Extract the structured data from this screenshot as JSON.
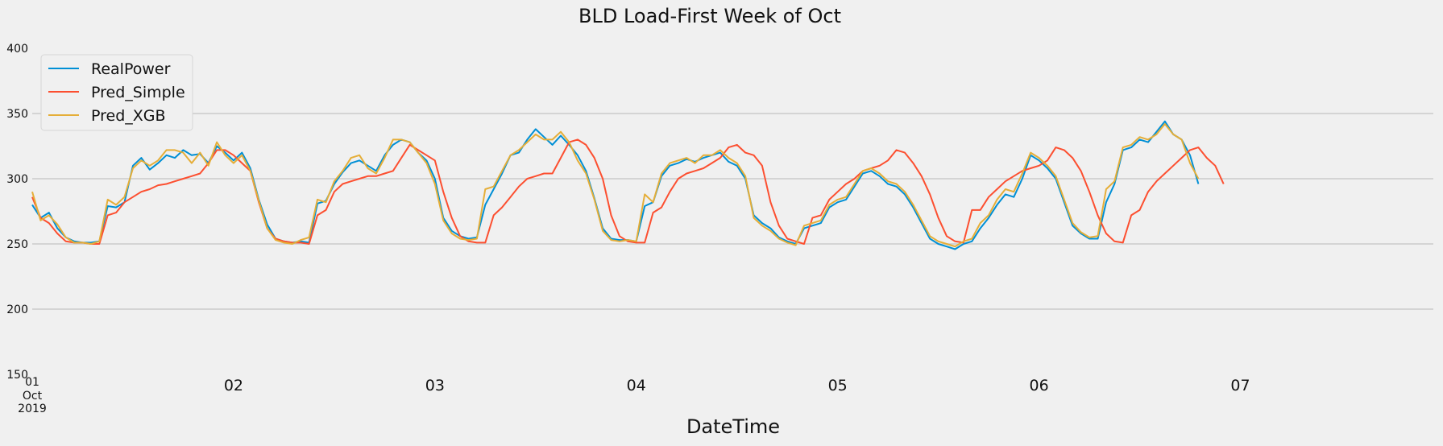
{
  "chart_data": {
    "type": "line",
    "title": "BLD Load-First Week of Oct",
    "xlabel": "DateTime",
    "ylabel": "",
    "ylim": [
      150,
      400
    ],
    "yticks": [
      150,
      200,
      250,
      300,
      350,
      400
    ],
    "xlim": [
      "2019-10-01 00:00",
      "2019-10-07 23:00"
    ],
    "xticks": [
      {
        "value": "2019-10-01",
        "label": "01",
        "sublabel": "Oct",
        "sublabel2": "2019"
      },
      {
        "value": "2019-10-02",
        "label": "02"
      },
      {
        "value": "2019-10-03",
        "label": "03"
      },
      {
        "value": "2019-10-04",
        "label": "04"
      },
      {
        "value": "2019-10-05",
        "label": "05"
      },
      {
        "value": "2019-10-06",
        "label": "06"
      },
      {
        "value": "2019-10-07",
        "label": "07"
      }
    ],
    "grid": true,
    "legend": "top-left",
    "colors": {
      "RealPower": "#008fd5",
      "Pred_Simple": "#fc4f30",
      "Pred_XGB": "#e5ae38"
    },
    "series": [
      {
        "name": "RealPower",
        "x_start": "2019-10-01 00:00",
        "x_step_hours": 1,
        "values": [
          280,
          270,
          274,
          262,
          255,
          252,
          251,
          251,
          252,
          279,
          278,
          282,
          310,
          316,
          307,
          312,
          318,
          316,
          322,
          318,
          319,
          312,
          325,
          320,
          314,
          320,
          308,
          284,
          265,
          254,
          252,
          251,
          252,
          251,
          281,
          283,
          296,
          305,
          312,
          314,
          310,
          306,
          318,
          326,
          330,
          328,
          320,
          314,
          300,
          270,
          260,
          256,
          254,
          255,
          280,
          292,
          304,
          318,
          320,
          330,
          338,
          332,
          326,
          333,
          326,
          318,
          306,
          285,
          262,
          254,
          253,
          253,
          252,
          279,
          282,
          302,
          310,
          312,
          315,
          313,
          316,
          318,
          320,
          313,
          310,
          300,
          272,
          266,
          262,
          255,
          252,
          250,
          262,
          264,
          266,
          278,
          282,
          284,
          294,
          304,
          306,
          302,
          296,
          294,
          288,
          278,
          266,
          254,
          250,
          248,
          246,
          250,
          252,
          262,
          270,
          280,
          288,
          286,
          300,
          318,
          314,
          308,
          300,
          282,
          264,
          258,
          254,
          254,
          282,
          296,
          322,
          324,
          330,
          328,
          336,
          344,
          334,
          330,
          318,
          296
        ]
      },
      {
        "name": "Pred_Simple",
        "x_start": "2019-10-01 00:00",
        "x_step_hours": 1,
        "values": [
          286,
          270,
          266,
          258,
          252,
          251,
          251,
          250,
          250,
          272,
          274,
          282,
          286,
          290,
          292,
          295,
          296,
          298,
          300,
          302,
          304,
          312,
          322,
          322,
          318,
          312,
          306,
          282,
          262,
          254,
          252,
          251,
          251,
          250,
          272,
          276,
          290,
          296,
          298,
          300,
          302,
          302,
          304,
          306,
          316,
          326,
          322,
          318,
          314,
          290,
          270,
          256,
          252,
          251,
          251,
          272,
          278,
          286,
          294,
          300,
          302,
          304,
          304,
          316,
          328,
          330,
          326,
          316,
          300,
          272,
          256,
          252,
          251,
          251,
          274,
          278,
          290,
          300,
          304,
          306,
          308,
          312,
          316,
          324,
          326,
          320,
          318,
          310,
          282,
          264,
          254,
          252,
          250,
          270,
          272,
          284,
          290,
          296,
          300,
          306,
          308,
          310,
          314,
          322,
          320,
          312,
          302,
          288,
          270,
          256,
          252,
          251,
          276,
          276,
          286,
          292,
          298,
          302,
          306,
          308,
          310,
          314,
          324,
          322,
          316,
          306,
          290,
          272,
          258,
          252,
          251,
          272,
          276,
          290,
          298,
          304,
          310,
          316,
          322,
          324,
          316,
          310,
          296
        ]
      },
      {
        "name": "Pred_XGB",
        "x_start": "2019-10-01 00:00",
        "x_step_hours": 1,
        "values": [
          290,
          268,
          272,
          265,
          255,
          251,
          251,
          250,
          252,
          284,
          280,
          286,
          308,
          314,
          310,
          314,
          322,
          322,
          320,
          312,
          320,
          310,
          328,
          318,
          312,
          318,
          306,
          283,
          262,
          253,
          251,
          250,
          253,
          255,
          284,
          282,
          298,
          306,
          316,
          318,
          308,
          304,
          316,
          330,
          330,
          328,
          320,
          312,
          296,
          268,
          258,
          254,
          253,
          254,
          292,
          294,
          306,
          318,
          322,
          328,
          334,
          330,
          330,
          336,
          328,
          314,
          304,
          284,
          260,
          253,
          252,
          253,
          252,
          288,
          282,
          304,
          312,
          314,
          316,
          312,
          318,
          318,
          322,
          316,
          312,
          302,
          270,
          264,
          260,
          254,
          251,
          249,
          264,
          266,
          268,
          280,
          284,
          286,
          296,
          306,
          308,
          304,
          298,
          296,
          290,
          280,
          268,
          256,
          252,
          250,
          248,
          252,
          254,
          266,
          272,
          284,
          292,
          290,
          304,
          320,
          316,
          310,
          302,
          284,
          266,
          259,
          255,
          256,
          292,
          298,
          324,
          326,
          332,
          330,
          334,
          342,
          334,
          330,
          312,
          300
        ]
      }
    ]
  }
}
